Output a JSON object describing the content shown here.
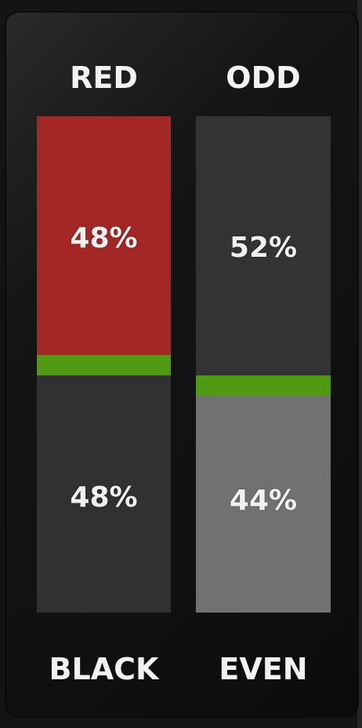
{
  "labels": {
    "top_left": "RED",
    "top_right": "ODD",
    "bottom_left": "BLACK",
    "bottom_right": "EVEN"
  },
  "columns": [
    {
      "top": {
        "name": "RED",
        "percent_text": "48%",
        "color": "#a32725"
      },
      "divider_color": "#4f9a12",
      "bottom": {
        "name": "BLACK",
        "percent_text": "48%",
        "color": "#313131"
      }
    },
    {
      "top": {
        "name": "ODD",
        "percent_text": "52%",
        "color": "#333333"
      },
      "divider_color": "#4f9a12",
      "bottom": {
        "name": "EVEN",
        "percent_text": "44%",
        "color": "#717171"
      }
    }
  ]
}
